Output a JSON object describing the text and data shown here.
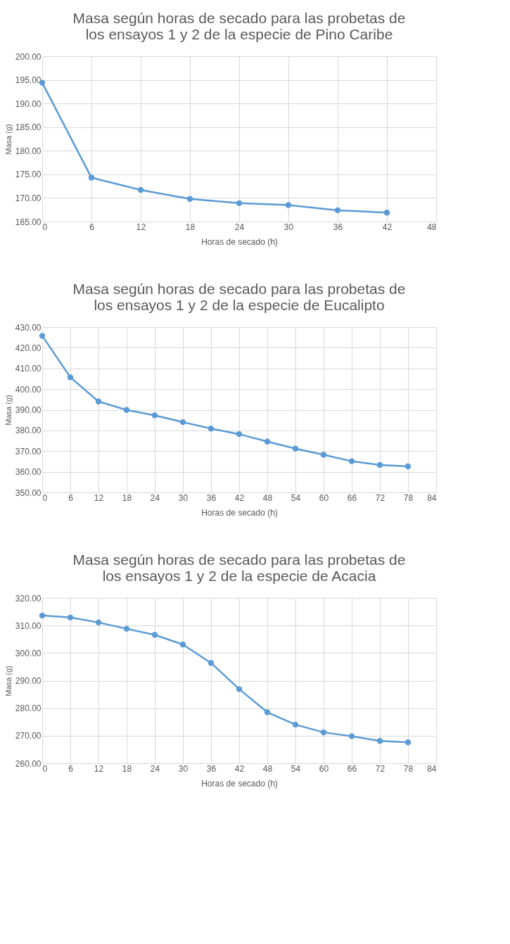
{
  "chart_data": [
    {
      "type": "line",
      "title": "Masa según horas de secado para las probetas de\nlos ensayos 1 y 2 de la especie de Pino Caribe",
      "xlabel": "Horas de secado (h)",
      "ylabel": "Masa (g)",
      "x": [
        0,
        6,
        12,
        18,
        24,
        30,
        36,
        42
      ],
      "series": [
        {
          "color": "#5b9bd5",
          "values": [
            194.4,
            174.3,
            171.7,
            169.8,
            168.9,
            168.5,
            167.4,
            166.9
          ]
        }
      ],
      "xlim": [
        0,
        48
      ],
      "xticks": [
        0,
        6,
        12,
        18,
        24,
        30,
        36,
        42,
        48
      ],
      "ylim": [
        165,
        200
      ],
      "yticks": [
        {
          "value": 165,
          "label": "165.00"
        },
        {
          "value": 170,
          "label": "170.00"
        },
        {
          "value": 175,
          "label": "175.00"
        },
        {
          "value": 180,
          "label": "180.00"
        },
        {
          "value": 185,
          "label": "185.00"
        },
        {
          "value": 190,
          "label": "190.00"
        },
        {
          "value": 195,
          "label": "195.00"
        },
        {
          "value": 200,
          "label": "200.00"
        }
      ],
      "grid": true,
      "marker": "circle"
    },
    {
      "type": "line",
      "title": "Masa según horas de secado para las probetas de\nlos ensayos 1 y 2 de la especie de Eucalipto",
      "xlabel": "Horas de secado (h)",
      "ylabel": "Masa (g)",
      "x": [
        0,
        6,
        12,
        18,
        24,
        30,
        36,
        42,
        48,
        54,
        60,
        66,
        72,
        78
      ],
      "series": [
        {
          "color": "#5b9bd5",
          "values": [
            425.8,
            405.7,
            394.0,
            389.9,
            387.3,
            384.0,
            380.9,
            378.2,
            374.6,
            371.2,
            368.2,
            365.1,
            363.3,
            362.6
          ]
        }
      ],
      "xlim": [
        0,
        84
      ],
      "xticks": [
        0,
        6,
        12,
        18,
        24,
        30,
        36,
        42,
        48,
        54,
        60,
        66,
        72,
        78,
        84
      ],
      "ylim": [
        350,
        430
      ],
      "yticks": [
        {
          "value": 350,
          "label": "350.00"
        },
        {
          "value": 360,
          "label": "360.00"
        },
        {
          "value": 370,
          "label": "370.00"
        },
        {
          "value": 380,
          "label": "380.00"
        },
        {
          "value": 390,
          "label": "390.00"
        },
        {
          "value": 400,
          "label": "400.00"
        },
        {
          "value": 410,
          "label": "410.00"
        },
        {
          "value": 420,
          "label": "420.00"
        },
        {
          "value": 430,
          "label": "430.00"
        }
      ],
      "grid": true,
      "marker": "circle"
    },
    {
      "type": "line",
      "title": "Masa según horas de secado para las probetas de\nlos ensayos 1 y 2 de la especie de Acacia",
      "xlabel": "Horas de secado (h)",
      "ylabel": "Masa (g)",
      "x": [
        0,
        6,
        12,
        18,
        24,
        30,
        36,
        42,
        48,
        54,
        60,
        66,
        72,
        78
      ],
      "series": [
        {
          "color": "#5b9bd5",
          "values": [
            313.6,
            312.9,
            311.1,
            308.8,
            306.6,
            303.1,
            296.4,
            286.9,
            278.5,
            274.0,
            271.2,
            269.8,
            268.1,
            267.6
          ]
        }
      ],
      "xlim": [
        0,
        84
      ],
      "xticks": [
        0,
        6,
        12,
        18,
        24,
        30,
        36,
        42,
        48,
        54,
        60,
        66,
        72,
        78,
        84
      ],
      "ylim": [
        260,
        320
      ],
      "yticks": [
        {
          "value": 260,
          "label": "260.00"
        },
        {
          "value": 270,
          "label": "270.00"
        },
        {
          "value": 280,
          "label": "280.00"
        },
        {
          "value": 290,
          "label": "290.00"
        },
        {
          "value": 300,
          "label": "300.00"
        },
        {
          "value": 310,
          "label": "310.00"
        },
        {
          "value": 320,
          "label": "320.00"
        }
      ],
      "grid": true,
      "marker": "circle"
    }
  ]
}
